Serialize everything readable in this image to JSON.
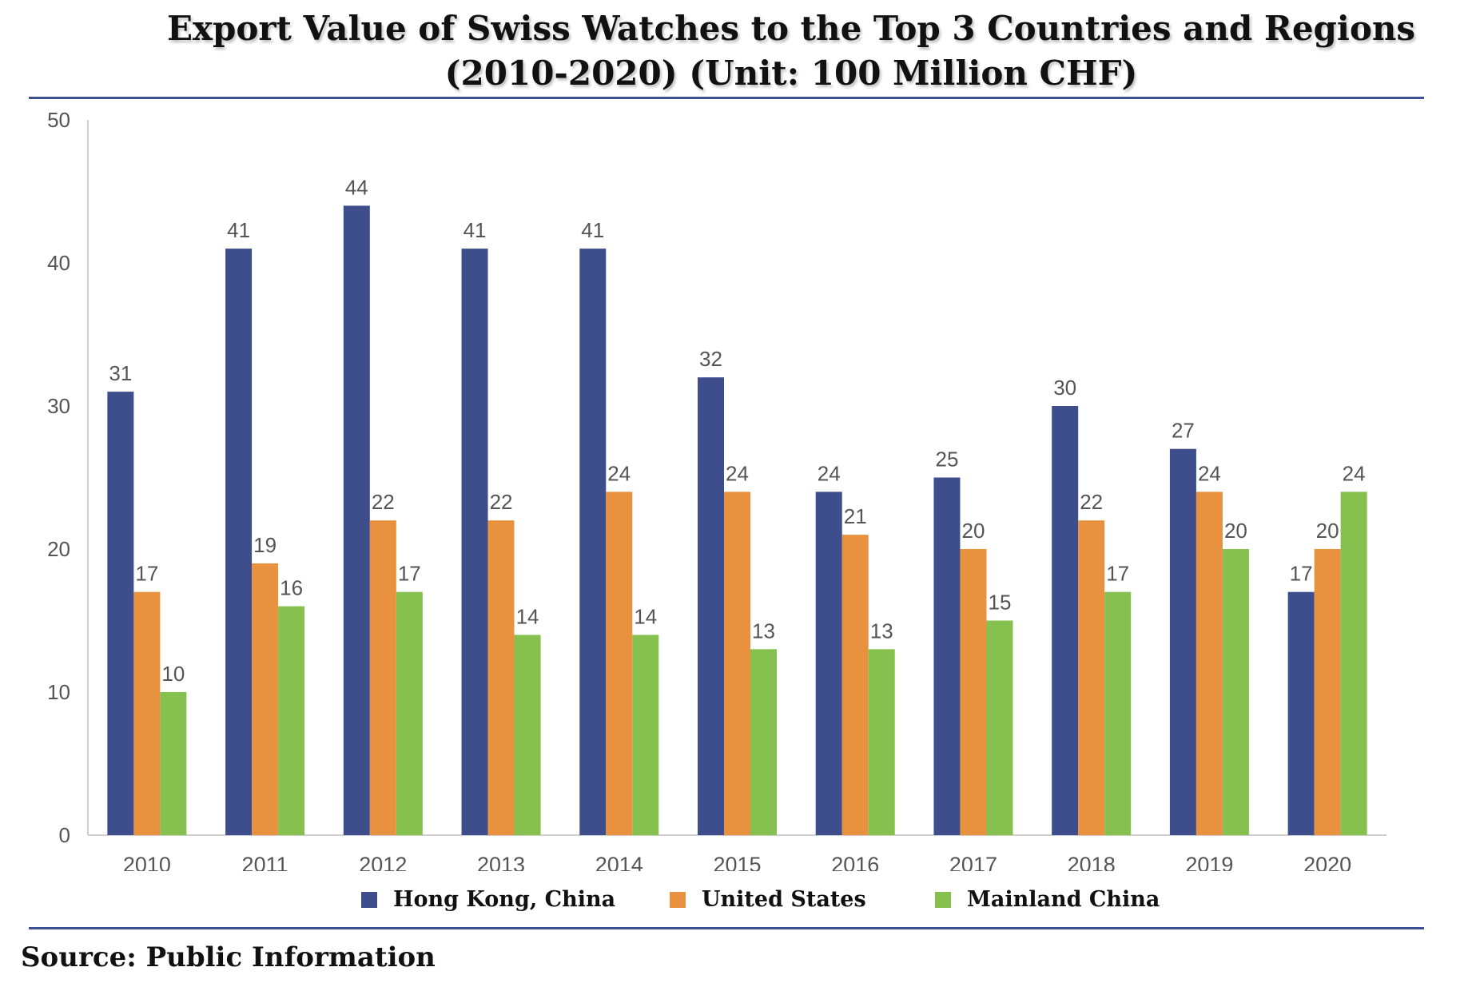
{
  "chart_data": {
    "type": "bar",
    "title_line1": "Export Value of Swiss Watches to the Top 3 Countries and Regions",
    "title_line2": "(2010-2020) (Unit: 100 Million CHF)",
    "categories": [
      "2010",
      "2011",
      "2012",
      "2013",
      "2014",
      "2015",
      "2016",
      "2017",
      "2018",
      "2019",
      "2020"
    ],
    "series": [
      {
        "name": "Hong Kong, China",
        "color": "#3e4d8c",
        "values": [
          31,
          41,
          44,
          41,
          41,
          32,
          24,
          25,
          30,
          27,
          17
        ]
      },
      {
        "name": "United States",
        "color": "#e8913e",
        "values": [
          17,
          19,
          22,
          22,
          24,
          24,
          21,
          20,
          22,
          24,
          20
        ]
      },
      {
        "name": "Mainland China",
        "color": "#86c04f",
        "values": [
          10,
          16,
          17,
          14,
          14,
          13,
          13,
          15,
          17,
          20,
          24
        ]
      }
    ],
    "ylim": [
      0,
      50
    ],
    "yticks": [
      "0",
      "10",
      "20",
      "30",
      "40",
      "50"
    ],
    "xlabel": "",
    "ylabel": "",
    "grid": false,
    "legend_position": "bottom",
    "data_labels": true
  },
  "source": "Source: Public Information"
}
